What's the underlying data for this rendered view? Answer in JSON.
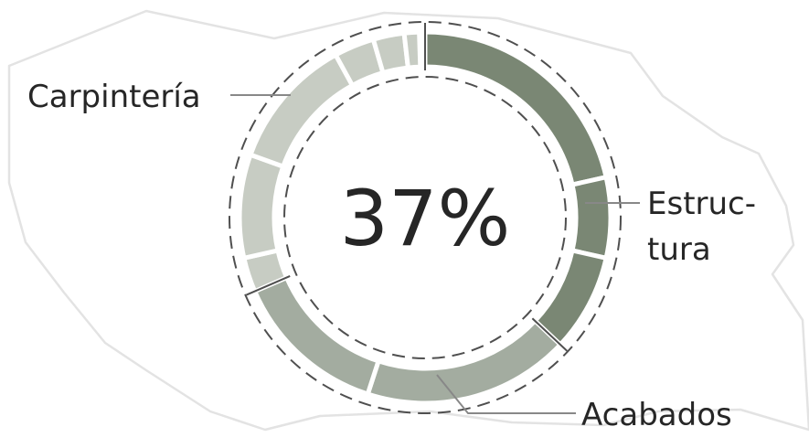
{
  "chart_data": {
    "type": "pie",
    "center_label": "37%",
    "series": [
      {
        "name": "Estructura",
        "label_lines": [
          "Estruc-",
          "tura"
        ],
        "color": "#7a8774",
        "values": [
          {
            "start": 0,
            "end": 0.215
          },
          {
            "start": 0.215,
            "end": 0.285
          },
          {
            "start": 0.285,
            "end": 0.37
          }
        ]
      },
      {
        "name": "Acabados",
        "label_lines": [
          "Acabados"
        ],
        "color": "#a3aca0",
        "values": [
          {
            "start": 0.37,
            "end": 0.55
          },
          {
            "start": 0.55,
            "end": 0.685
          }
        ]
      },
      {
        "name": "Carpintería",
        "label_lines": [
          "Carpintería"
        ],
        "color": "#c7ccc3",
        "values": [
          {
            "start": 0.685,
            "end": 0.715
          },
          {
            "start": 0.715,
            "end": 0.805
          },
          {
            "start": 0.805,
            "end": 0.92
          },
          {
            "start": 0.92,
            "end": 0.955
          },
          {
            "start": 0.955,
            "end": 0.982
          },
          {
            "start": 0.982,
            "end": 0.995
          }
        ]
      }
    ]
  }
}
